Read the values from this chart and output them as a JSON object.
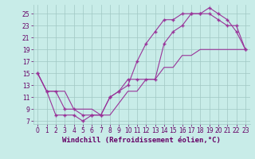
{
  "xlabel": "Windchill (Refroidissement éolien,°C)",
  "background_color": "#c8ece8",
  "grid_color": "#a0c8c4",
  "line_color": "#993399",
  "marker": "+",
  "xlim": [
    -0.5,
    23.5
  ],
  "ylim": [
    6.5,
    26.5
  ],
  "yticks": [
    7,
    9,
    11,
    13,
    15,
    17,
    19,
    21,
    23,
    25
  ],
  "xticks": [
    0,
    1,
    2,
    3,
    4,
    5,
    6,
    7,
    8,
    9,
    10,
    11,
    12,
    13,
    14,
    15,
    16,
    17,
    18,
    19,
    20,
    21,
    22,
    23
  ],
  "line1_x": [
    0,
    1,
    2,
    3,
    4,
    5,
    6,
    7,
    8,
    9,
    10,
    11,
    12,
    13,
    14,
    15,
    16,
    17,
    18,
    19,
    20,
    21,
    22,
    23
  ],
  "line1_y": [
    15,
    12,
    12,
    9,
    9,
    8,
    8,
    8,
    11,
    12,
    13,
    17,
    20,
    22,
    24,
    24,
    25,
    25,
    25,
    26,
    25,
    24,
    22,
    19
  ],
  "line2_x": [
    0,
    1,
    2,
    3,
    4,
    5,
    6,
    7,
    8,
    9,
    10,
    11,
    12,
    13,
    14,
    15,
    16,
    17,
    18,
    19,
    20,
    21,
    22,
    23
  ],
  "line2_y": [
    15,
    12,
    8,
    8,
    8,
    7,
    8,
    8,
    11,
    12,
    14,
    14,
    14,
    14,
    20,
    22,
    23,
    25,
    25,
    25,
    24,
    23,
    23,
    19
  ],
  "line3_x": [
    0,
    1,
    2,
    3,
    4,
    5,
    6,
    7,
    8,
    9,
    10,
    11,
    12,
    13,
    14,
    15,
    16,
    17,
    18,
    19,
    20,
    21,
    22,
    23
  ],
  "line3_y": [
    15,
    12,
    12,
    12,
    9,
    9,
    9,
    8,
    8,
    10,
    12,
    12,
    14,
    14,
    16,
    16,
    18,
    18,
    19,
    19,
    19,
    19,
    19,
    19
  ],
  "font_color": "#660066",
  "tick_labelsize": 5.5,
  "xlabel_fontsize": 6.5
}
